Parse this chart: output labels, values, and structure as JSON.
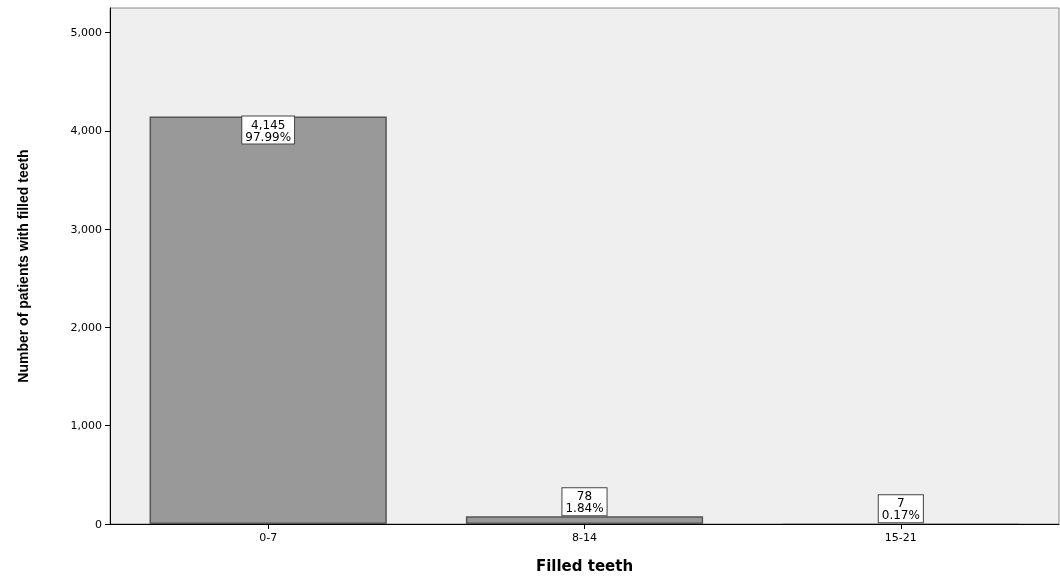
{
  "chart_data": {
    "type": "bar",
    "xlabel": "Filled teeth",
    "ylabel": "Number of patients with filled teeth",
    "categories": [
      "0-7",
      "8-14",
      "15-21"
    ],
    "values": [
      4145,
      78,
      7
    ],
    "value_labels": [
      "4,145\n97.99%",
      "78\n1.84%",
      "7\n0.17%"
    ],
    "color": "#999999",
    "ylim": [
      0,
      5250
    ],
    "yticks": [
      {
        "value": 0,
        "label": "0"
      },
      {
        "value": 1000,
        "label": "1,000"
      },
      {
        "value": 2000,
        "label": "2,000"
      },
      {
        "value": 3000,
        "label": "3,000"
      },
      {
        "value": 4000,
        "label": "4,000"
      },
      {
        "value": 5000,
        "label": "5,000"
      }
    ],
    "grid": false
  }
}
